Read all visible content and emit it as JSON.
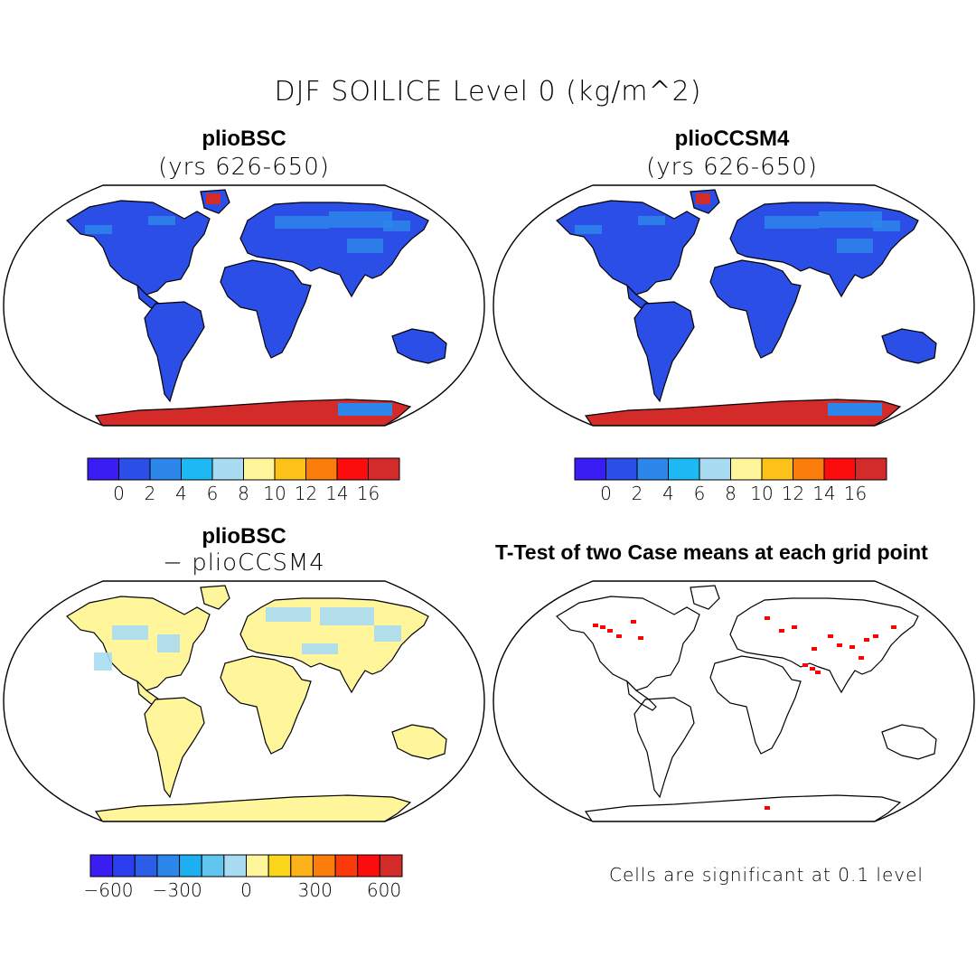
{
  "figure": {
    "title": "DJF SOILICE Level 0 (kg/m^2)"
  },
  "panels": {
    "top_left": {
      "title": "plioBSC",
      "subtitle": "(yrs 626-650)"
    },
    "top_right": {
      "title": "plioCCSM4",
      "subtitle": "(yrs 626-650)"
    },
    "bottom_left": {
      "title": "plioBSC",
      "subtitle": "− plioCCSM4"
    },
    "bottom_right": {
      "title": "T-Test of two Case means at each grid point"
    }
  },
  "colorbars": {
    "abs": {
      "colors": [
        "#3a1df2",
        "#2b4ee6",
        "#2d86ea",
        "#1cb9f2",
        "#a9dcf2",
        "#fff59a",
        "#fcc21a",
        "#fb7d0c",
        "#fb0d0d",
        "#d32a2a"
      ],
      "ticks": [
        "0",
        "2",
        "4",
        "6",
        "8",
        "10",
        "12",
        "14",
        "16"
      ]
    },
    "diff": {
      "colors": [
        "#3a1df2",
        "#2b3ff0",
        "#2b5ee6",
        "#2d86ea",
        "#1cb0f2",
        "#62c5ef",
        "#a9dcf2",
        "#fff59a",
        "#fcd61a",
        "#fcb21a",
        "#fb7d0c",
        "#fb3a0c",
        "#fb0d0d",
        "#d32a2a"
      ],
      "ticks": [
        "−600",
        "−300",
        "0",
        "300",
        "600"
      ]
    }
  },
  "map_colors": {
    "land_low": "#2b4ee6",
    "land_mid": "#2d86ea",
    "ice_high": "#d32a2a",
    "diff_neutral": "#fff59a",
    "diff_negative": "#a9dcf2",
    "significant": "#ff0000"
  },
  "note": "Cells are significant at 0.1 level"
}
